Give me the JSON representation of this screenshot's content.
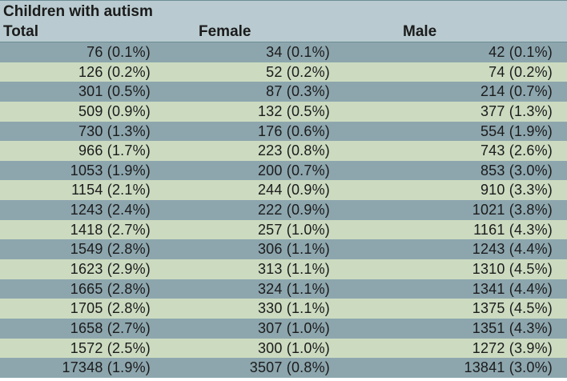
{
  "table": {
    "caption": "Children with autism",
    "headers": {
      "total": "Total",
      "female": "Female",
      "male": "Male"
    },
    "rows": [
      {
        "total": "76 (0.1%)",
        "female": "34 (0.1%)",
        "male": "42 (0.1%)"
      },
      {
        "total": "126 (0.2%)",
        "female": "52 (0.2%)",
        "male": "74 (0.2%)"
      },
      {
        "total": "301 (0.5%)",
        "female": "87 (0.3%)",
        "male": "214 (0.7%)"
      },
      {
        "total": "509 (0.9%)",
        "female": "132 (0.5%)",
        "male": "377 (1.3%)"
      },
      {
        "total": "730 (1.3%)",
        "female": "176 (0.6%)",
        "male": "554 (1.9%)"
      },
      {
        "total": "966 (1.7%)",
        "female": "223 (0.8%)",
        "male": "743 (2.6%)"
      },
      {
        "total": "1053 (1.9%)",
        "female": "200 (0.7%)",
        "male": "853 (3.0%)"
      },
      {
        "total": "1154 (2.1%)",
        "female": "244 (0.9%)",
        "male": "910 (3.3%)"
      },
      {
        "total": "1243 (2.4%)",
        "female": "222 (0.9%)",
        "male": "1021 (3.8%)"
      },
      {
        "total": "1418 (2.7%)",
        "female": "257 (1.0%)",
        "male": "1161 (4.3%)"
      },
      {
        "total": "1549 (2.8%)",
        "female": "306 (1.1%)",
        "male": "1243 (4.4%)"
      },
      {
        "total": "1623 (2.9%)",
        "female": "313 (1.1%)",
        "male": "1310 (4.5%)"
      },
      {
        "total": "1665 (2.8%)",
        "female": "324 (1.1%)",
        "male": "1341 (4.4%)"
      },
      {
        "total": "1705 (2.8%)",
        "female": "330 (1.1%)",
        "male": "1375 (4.5%)"
      },
      {
        "total": "1658 (2.7%)",
        "female": "307 (1.0%)",
        "male": "1351 (4.3%)"
      },
      {
        "total": "1572 (2.5%)",
        "female": "300 (1.0%)",
        "male": "1272 (3.9%)"
      },
      {
        "total": "17348 (1.9%)",
        "female": "3507 (0.8%)",
        "male": "13841 (3.0%)"
      }
    ]
  },
  "colors": {
    "header_bg": "#b9cbd0",
    "row_dark": "#8da6ae",
    "row_light": "#ccdbc0"
  }
}
